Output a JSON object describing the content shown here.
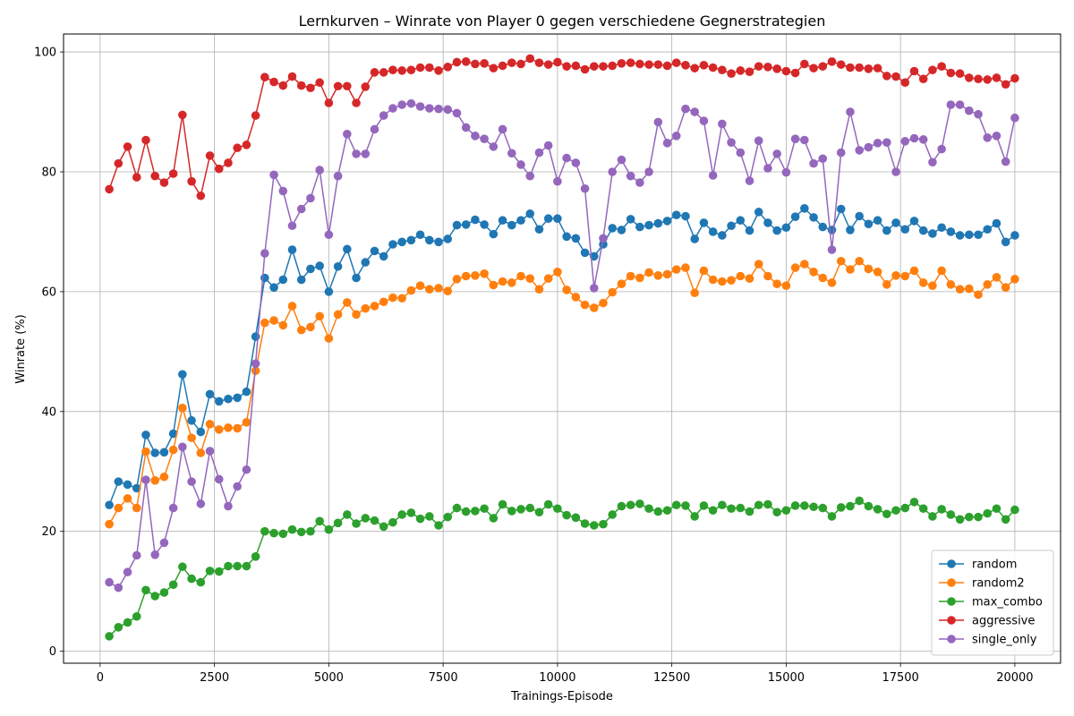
{
  "chart_data": {
    "type": "line",
    "title": "Lernkurven – Winrate von Player 0 gegen verschiedene Gegnerstrategien",
    "xlabel": "Trainings-Episode",
    "ylabel": "Winrate (%)",
    "xlim": [
      -800,
      21000
    ],
    "ylim": [
      -2,
      103
    ],
    "x_ticks": [
      0,
      2500,
      5000,
      7500,
      10000,
      12500,
      15000,
      17500,
      20000
    ],
    "x_tick_labels": [
      "0",
      "2500",
      "5000",
      "7500",
      "10000",
      "12500",
      "15000",
      "17500",
      "20000"
    ],
    "y_ticks": [
      0,
      20,
      40,
      60,
      80,
      100
    ],
    "y_tick_labels": [
      "0",
      "20",
      "40",
      "60",
      "80",
      "100"
    ],
    "grid": true,
    "legend_position": "lower-right",
    "x_start": 200,
    "x_step": 200,
    "series": [
      {
        "name": "random",
        "color": "#1f77b4",
        "values": [
          24.4,
          28.3,
          27.8,
          27.2,
          36.1,
          33.1,
          33.2,
          36.3,
          46.2,
          38.5,
          36.6,
          42.9,
          41.7,
          42.1,
          42.3,
          43.3,
          52.5,
          62.3,
          60.7,
          62.0,
          67.0,
          62.0,
          63.8,
          64.3,
          60.0,
          64.2,
          67.1,
          62.3,
          64.9,
          66.8,
          65.9,
          67.9,
          68.3,
          68.6,
          69.5,
          68.6,
          68.3,
          68.8,
          71.1,
          71.2,
          72.0,
          71.2,
          69.6,
          71.9,
          71.1,
          71.9,
          73.0,
          70.4,
          72.2,
          72.2,
          69.2,
          68.9,
          66.5,
          65.9,
          67.9,
          70.6,
          70.3,
          72.1,
          70.8,
          71.1,
          71.4,
          71.8,
          72.8,
          72.6,
          68.8,
          71.5,
          70.0,
          69.4,
          71.0,
          71.9,
          70.2,
          73.3,
          71.5,
          70.2,
          70.7,
          72.5,
          73.9,
          72.4,
          70.8,
          70.3,
          73.8,
          70.3,
          72.6,
          71.3,
          71.9,
          70.2,
          71.5,
          70.4,
          71.8,
          70.2,
          69.7,
          70.7,
          70.0,
          69.4,
          69.5,
          69.5,
          70.4,
          71.4,
          68.3,
          69.4
        ]
      },
      {
        "name": "random2",
        "color": "#ff7f0e",
        "values": [
          21.2,
          23.9,
          25.5,
          23.9,
          33.3,
          28.5,
          29.1,
          33.6,
          40.6,
          35.6,
          33.1,
          37.9,
          37.0,
          37.3,
          37.2,
          38.2,
          46.8,
          54.8,
          55.2,
          54.4,
          57.6,
          53.6,
          54.1,
          55.9,
          52.2,
          56.2,
          58.2,
          56.2,
          57.2,
          57.6,
          58.3,
          59.0,
          58.9,
          60.2,
          61.0,
          60.4,
          60.6,
          60.1,
          62.1,
          62.6,
          62.7,
          63.0,
          61.1,
          61.7,
          61.5,
          62.6,
          62.2,
          60.4,
          62.2,
          63.3,
          60.3,
          59.1,
          57.8,
          57.3,
          58.1,
          59.9,
          61.3,
          62.6,
          62.3,
          63.2,
          62.7,
          62.9,
          63.7,
          64.0,
          59.8,
          63.5,
          62.0,
          61.7,
          61.9,
          62.6,
          62.2,
          64.6,
          62.6,
          61.3,
          61.0,
          64.0,
          64.6,
          63.3,
          62.3,
          61.5,
          65.1,
          63.7,
          65.1,
          63.8,
          63.3,
          61.2,
          62.7,
          62.6,
          63.5,
          61.5,
          61.0,
          63.5,
          61.2,
          60.4,
          60.5,
          59.5,
          61.2,
          62.4,
          60.7,
          62.1
        ]
      },
      {
        "name": "max_combo",
        "color": "#2ca02c",
        "values": [
          2.5,
          4.0,
          4.8,
          5.8,
          10.2,
          9.2,
          9.8,
          11.1,
          14.1,
          12.1,
          11.5,
          13.4,
          13.3,
          14.2,
          14.2,
          14.2,
          15.8,
          20.0,
          19.7,
          19.6,
          20.3,
          19.9,
          20.0,
          21.7,
          20.3,
          21.4,
          22.8,
          21.3,
          22.2,
          21.8,
          20.8,
          21.5,
          22.8,
          23.1,
          22.1,
          22.5,
          21.0,
          22.4,
          23.9,
          23.3,
          23.4,
          23.8,
          22.2,
          24.5,
          23.4,
          23.7,
          23.9,
          23.2,
          24.5,
          23.8,
          22.7,
          22.3,
          21.3,
          21.0,
          21.2,
          22.8,
          24.2,
          24.4,
          24.6,
          23.8,
          23.3,
          23.5,
          24.4,
          24.3,
          22.5,
          24.3,
          23.5,
          24.4,
          23.8,
          23.9,
          23.3,
          24.4,
          24.5,
          23.2,
          23.5,
          24.3,
          24.3,
          24.1,
          23.9,
          22.5,
          24.0,
          24.2,
          25.1,
          24.2,
          23.7,
          22.9,
          23.5,
          23.9,
          24.9,
          23.8,
          22.5,
          23.7,
          22.8,
          22.0,
          22.4,
          22.4,
          23.0,
          23.8,
          22.0,
          23.6
        ]
      },
      {
        "name": "aggressive",
        "color": "#d62728",
        "values": [
          77.1,
          81.4,
          84.2,
          79.1,
          85.3,
          79.3,
          78.2,
          79.7,
          89.5,
          78.4,
          76.0,
          82.7,
          80.5,
          81.5,
          84.0,
          84.5,
          89.4,
          95.8,
          95.0,
          94.4,
          95.9,
          94.4,
          94.0,
          94.9,
          91.5,
          94.3,
          94.3,
          91.5,
          94.2,
          96.6,
          96.6,
          97.0,
          96.9,
          97.0,
          97.4,
          97.4,
          96.9,
          97.5,
          98.3,
          98.4,
          98.0,
          98.1,
          97.3,
          97.7,
          98.2,
          98.0,
          98.9,
          98.2,
          97.9,
          98.3,
          97.6,
          97.7,
          97.1,
          97.6,
          97.6,
          97.7,
          98.1,
          98.2,
          98.0,
          97.9,
          97.9,
          97.7,
          98.2,
          97.8,
          97.3,
          97.8,
          97.4,
          97.0,
          96.4,
          96.9,
          96.7,
          97.6,
          97.5,
          97.2,
          96.8,
          96.5,
          98.0,
          97.3,
          97.6,
          98.4,
          97.9,
          97.4,
          97.4,
          97.2,
          97.3,
          96.0,
          95.9,
          94.9,
          96.8,
          95.5,
          97.0,
          97.6,
          96.5,
          96.4,
          95.7,
          95.5,
          95.4,
          95.7,
          94.6,
          95.6
        ]
      },
      {
        "name": "single_only",
        "color": "#9467bd",
        "values": [
          11.5,
          10.6,
          13.2,
          16.0,
          28.6,
          16.1,
          18.1,
          23.9,
          34.1,
          28.3,
          24.6,
          33.4,
          28.7,
          24.2,
          27.5,
          30.3,
          48.0,
          66.4,
          79.5,
          76.8,
          71.0,
          73.8,
          75.6,
          80.3,
          69.5,
          79.3,
          86.3,
          83.0,
          83.0,
          87.1,
          89.4,
          90.6,
          91.2,
          91.4,
          90.9,
          90.6,
          90.5,
          90.4,
          89.8,
          87.4,
          86.0,
          85.5,
          84.2,
          87.1,
          83.1,
          81.2,
          79.3,
          83.2,
          84.4,
          78.4,
          82.3,
          81.5,
          77.2,
          60.6,
          68.9,
          80.0,
          82.0,
          79.3,
          78.2,
          80.0,
          88.3,
          84.8,
          86.0,
          90.5,
          90.0,
          88.5,
          79.4,
          88.0,
          84.9,
          83.2,
          78.5,
          85.2,
          80.6,
          83.0,
          79.9,
          85.5,
          85.3,
          81.4,
          82.2,
          67.0,
          83.2,
          90.0,
          83.6,
          84.1,
          84.8,
          84.9,
          80.0,
          85.1,
          85.6,
          85.4,
          81.6,
          83.8,
          91.2,
          91.2,
          90.2,
          89.6,
          85.7,
          86.0,
          81.7,
          89.0
        ]
      }
    ]
  }
}
